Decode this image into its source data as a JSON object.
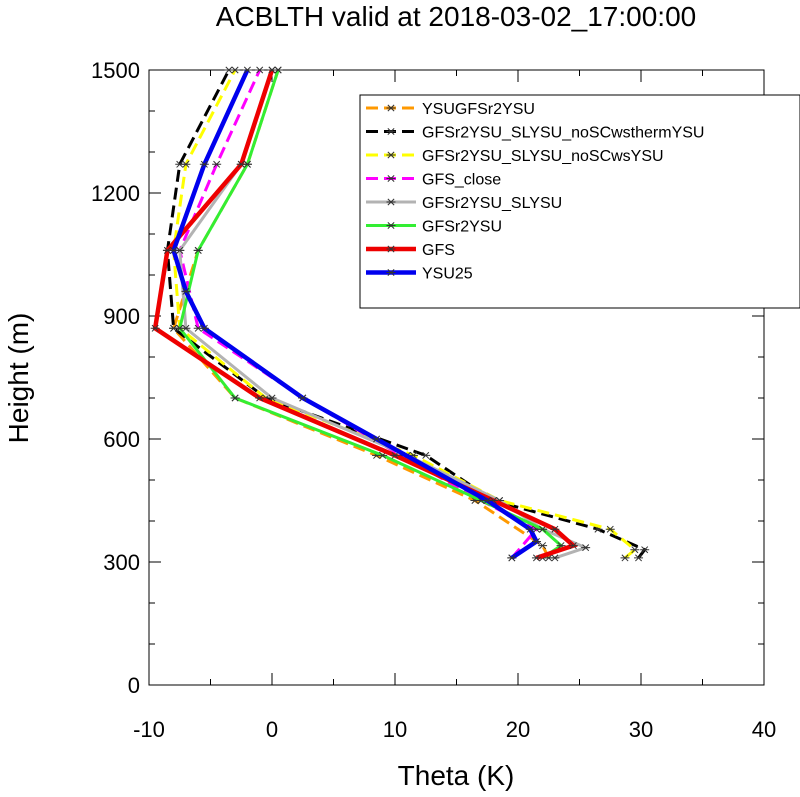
{
  "chart_data": {
    "type": "line",
    "title": "ACBLTH valid at 2018-03-02_17:00:00",
    "xlabel": "Theta (K)",
    "ylabel": "Height (m)",
    "xlim": [
      -10,
      40
    ],
    "ylim": [
      0,
      1500
    ],
    "xticks": [
      -10,
      0,
      10,
      20,
      30,
      40
    ],
    "yticks": [
      0,
      300,
      600,
      900,
      1200,
      1500
    ],
    "legend_position": "top-right",
    "series": [
      {
        "name": "YSUGFSr2YSU",
        "color": "#ff9900",
        "dash": "dash",
        "width": 3,
        "x": [
          22.5,
          22.0,
          16.5,
          8.5,
          -3.0,
          -8.0,
          -6.0,
          -2.0,
          0.5
        ],
        "y": [
          310,
          340,
          450,
          560,
          700,
          870,
          1060,
          1270,
          1500
        ]
      },
      {
        "name": "GFSr2YSU_SLYSU_noSCwsthermYSU",
        "color": "#000000",
        "dash": "dash",
        "width": 3,
        "x": [
          29.8,
          30.3,
          26.5,
          18.0,
          12.5,
          -0.5,
          -8.0,
          -8.5,
          -7.5,
          -3.5
        ],
        "y": [
          310,
          330,
          380,
          450,
          560,
          700,
          870,
          1060,
          1270,
          1500
        ]
      },
      {
        "name": "GFSr2YSU_SLYSU_noSCwsYSU",
        "color": "#ffff00",
        "dash": "dash",
        "width": 3,
        "x": [
          28.7,
          29.5,
          27.5,
          18.5,
          11.5,
          -0.5,
          -7.5,
          -8.0,
          -7.0,
          -3.0
        ],
        "y": [
          310,
          330,
          380,
          450,
          560,
          700,
          870,
          1060,
          1270,
          1500
        ]
      },
      {
        "name": "GFS_close",
        "color": "#ff00ff",
        "dash": "dash",
        "width": 3,
        "x": [
          19.5,
          21.5,
          17.0,
          10.5,
          2.5,
          -6.0,
          -7.5,
          -4.5,
          -1.0
        ],
        "y": [
          310,
          380,
          450,
          560,
          700,
          870,
          1060,
          1270,
          1500
        ]
      },
      {
        "name": "GFSr2YSU_SLYSU",
        "color": "#b3b3b3",
        "dash": "solid",
        "width": 3,
        "x": [
          23.0,
          25.5,
          22.0,
          18.5,
          11.0,
          0.0,
          -7.0,
          -7.5,
          -2.5,
          0.0
        ],
        "y": [
          310,
          335,
          380,
          450,
          560,
          700,
          870,
          1060,
          1270,
          1500
        ]
      },
      {
        "name": "GFSr2YSU",
        "color": "#33ee33",
        "dash": "solid",
        "width": 3,
        "x": [
          22.0,
          23.5,
          22.0,
          17.0,
          9.0,
          -3.0,
          -7.5,
          -6.0,
          -2.0,
          0.5
        ],
        "y": [
          310,
          340,
          380,
          450,
          560,
          700,
          870,
          1060,
          1270,
          1500
        ]
      },
      {
        "name": "GFS",
        "color": "#ee0000",
        "dash": "solid",
        "width": 4.5,
        "x": [
          21.5,
          24.5,
          23.0,
          18.0,
          10.0,
          -1.0,
          -9.5,
          -8.5,
          -2.5,
          0.0
        ],
        "y": [
          310,
          340,
          380,
          450,
          560,
          700,
          870,
          1060,
          1270,
          1500
        ]
      },
      {
        "name": "YSU25",
        "color": "#0000ee",
        "dash": "solid",
        "width": 4.5,
        "x": [
          19.5,
          21.5,
          21.0,
          17.5,
          8.5,
          2.5,
          -5.5,
          -7.0,
          -8.0,
          -5.5,
          -2.0
        ],
        "y": [
          310,
          350,
          380,
          450,
          600,
          700,
          870,
          960,
          1060,
          1270,
          1500
        ]
      }
    ]
  }
}
